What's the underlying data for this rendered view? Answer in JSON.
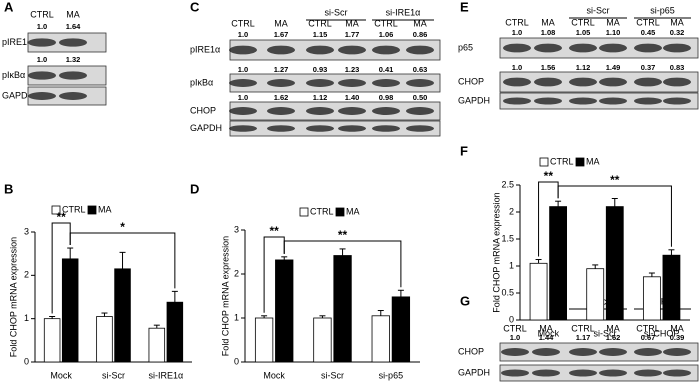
{
  "blots": [
    {
      "panel": "A",
      "lanes": [
        "CTRL",
        "MA"
      ],
      "groups": [],
      "rows": [
        {
          "label": "pIRE1α",
          "quant": [
            "1.0",
            "1.64"
          ]
        },
        {
          "label": "pIκBα",
          "quant": [
            "1.0",
            "1.32"
          ]
        },
        {
          "label": "GAPDH"
        }
      ]
    },
    {
      "panel": "C",
      "lanes": [
        "CTRL",
        "MA",
        "CTRL",
        "MA",
        "CTRL",
        "MA"
      ],
      "groups": [
        "si-Scr",
        "si-IRE1α"
      ],
      "rows": [
        {
          "label": "pIRE1α",
          "quant": [
            "1.0",
            "1.67",
            "1.15",
            "1.77",
            "1.06",
            "0.86"
          ]
        },
        {
          "label": "pIκBα",
          "quant": [
            "1.0",
            "1.27",
            "0.93",
            "1.23",
            "0.41",
            "0.63"
          ]
        },
        {
          "label": "CHOP",
          "quant": [
            "1.0",
            "1.62",
            "1.12",
            "1.40",
            "0.98",
            "0.50"
          ]
        },
        {
          "label": "GAPDH"
        }
      ]
    },
    {
      "panel": "E",
      "lanes": [
        "CTRL",
        "MA",
        "CTRL",
        "MA",
        "CTRL",
        "MA"
      ],
      "groups": [
        "si-Scr",
        "si-p65"
      ],
      "rows": [
        {
          "label": "p65",
          "quant": [
            "1.0",
            "1.08",
            "1.05",
            "1.10",
            "0.45",
            "0.32"
          ]
        },
        {
          "label": "CHOP",
          "quant": [
            "1.0",
            "1.56",
            "1.12",
            "1.49",
            "0.37",
            "0.83"
          ]
        },
        {
          "label": "GAPDH"
        }
      ]
    },
    {
      "panel": "G",
      "lanes": [
        "CTRL",
        "MA",
        "CTRL",
        "MA",
        "CTRL",
        "MA"
      ],
      "groups": [
        "si-Scr",
        "si-CHOP"
      ],
      "rows": [
        {
          "label": "CHOP",
          "quant": [
            "1.0",
            "1.44",
            "1.17",
            "1.62",
            "0.67",
            "0.39"
          ]
        },
        {
          "label": "GAPDH"
        }
      ]
    }
  ],
  "chart_data": [
    {
      "type": "bar",
      "panel": "B",
      "ylabel": "Fold CHOP mRNA expression",
      "categories": [
        "Mock",
        "si-Scr",
        "si-IRE1α"
      ],
      "series": [
        {
          "name": "CTRL",
          "color": "#ffffff",
          "values": [
            1.0,
            1.05,
            0.78
          ],
          "errors": [
            0.05,
            0.08,
            0.07
          ]
        },
        {
          "name": "MA",
          "color": "#000000",
          "values": [
            2.38,
            2.15,
            1.38
          ],
          "errors": [
            0.25,
            0.38,
            0.25
          ]
        }
      ],
      "ylim": [
        0,
        3
      ],
      "yticks": [
        0,
        1,
        2,
        3
      ],
      "annotations": [
        "**",
        "*"
      ]
    },
    {
      "type": "bar",
      "panel": "D",
      "ylabel": "Fold CHOP mRNA expression",
      "categories": [
        "Mock",
        "si-Scr",
        "si-p65"
      ],
      "series": [
        {
          "name": "CTRL",
          "color": "#ffffff",
          "values": [
            1.0,
            1.0,
            1.05
          ],
          "errors": [
            0.05,
            0.05,
            0.12
          ]
        },
        {
          "name": "MA",
          "color": "#000000",
          "values": [
            2.32,
            2.42,
            1.48
          ],
          "errors": [
            0.07,
            0.15,
            0.15
          ]
        }
      ],
      "ylim": [
        0,
        3
      ],
      "yticks": [
        0,
        1,
        2,
        3
      ],
      "annotations": [
        "**",
        "**"
      ]
    },
    {
      "type": "bar",
      "panel": "F",
      "ylabel": "Fold CHOP mRNA expression",
      "categories": [
        "Mock",
        "si-Scr",
        "si-CHOP"
      ],
      "series": [
        {
          "name": "CTRL",
          "color": "#ffffff",
          "values": [
            1.05,
            0.95,
            0.8
          ],
          "errors": [
            0.07,
            0.07,
            0.07
          ]
        },
        {
          "name": "MA",
          "color": "#000000",
          "values": [
            2.1,
            2.1,
            1.2
          ],
          "errors": [
            0.1,
            0.15,
            0.1
          ]
        }
      ],
      "ylim": [
        0,
        2.5
      ],
      "yticks": [
        0,
        0.5,
        1,
        1.5,
        2,
        2.5
      ],
      "annotations": [
        "**",
        "**"
      ]
    }
  ]
}
